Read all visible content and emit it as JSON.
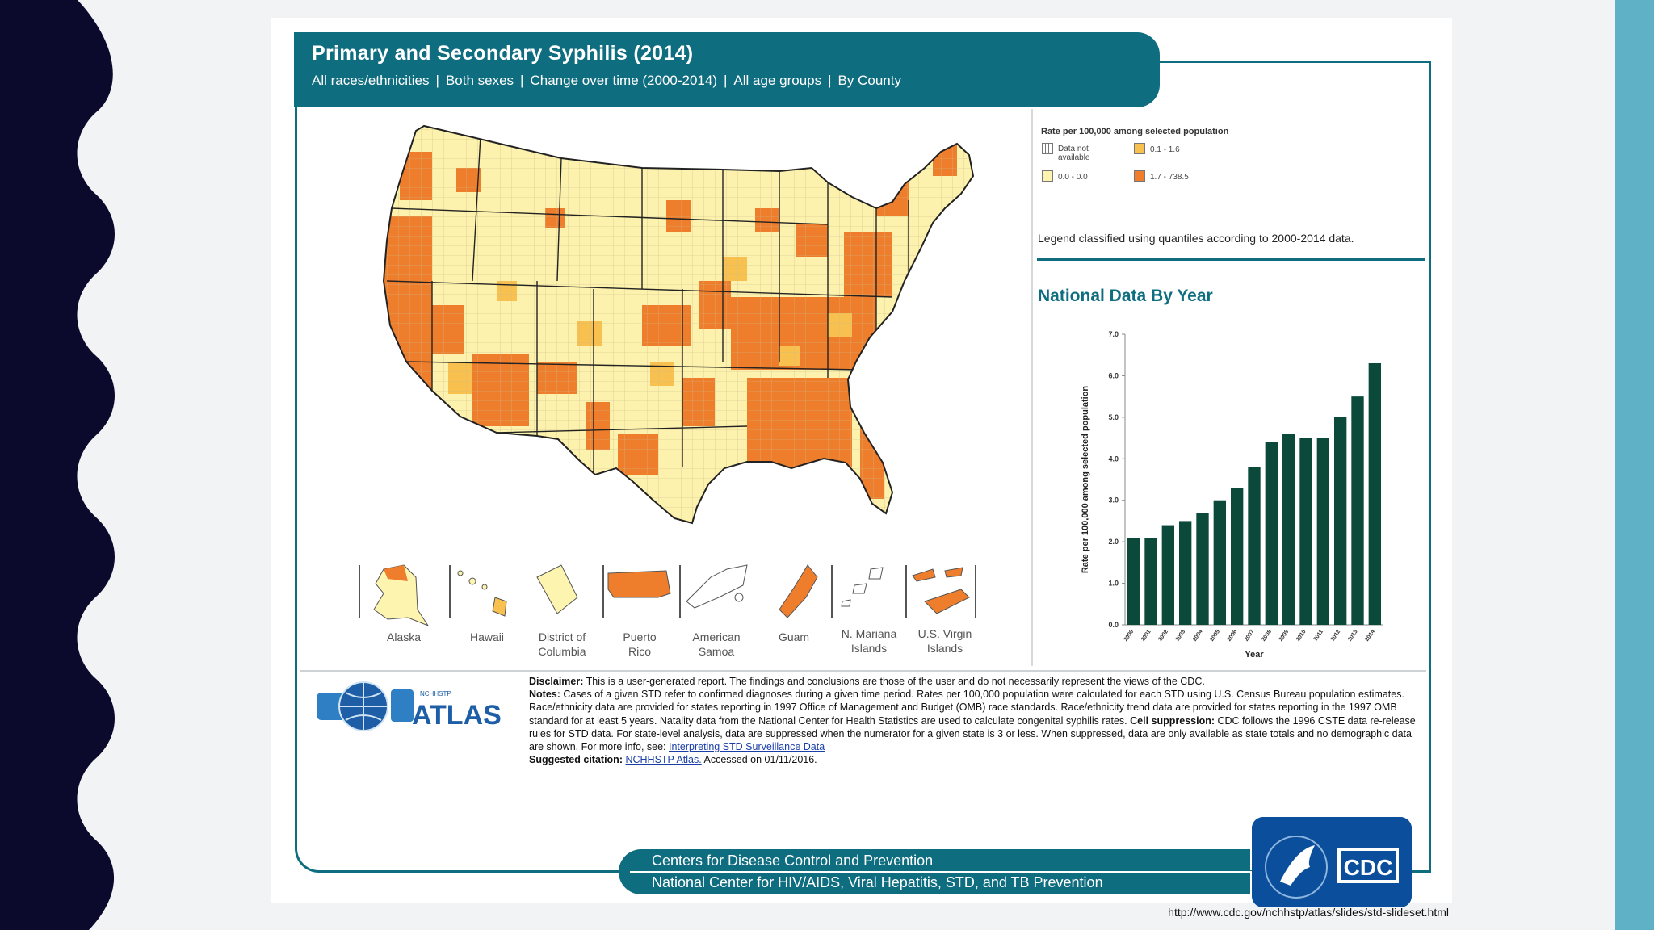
{
  "header": {
    "title": "Primary and Secondary Syphilis (2014)",
    "filters": [
      "All races/ethnicities",
      "Both sexes",
      "Change over time (2000-2014)",
      "All age groups",
      "By County"
    ],
    "separator": "|"
  },
  "legend": {
    "title": "Rate per 100,000 among selected population",
    "items": [
      {
        "label": "Data not available",
        "color": "#ffffff"
      },
      {
        "label": "0.1 - 1.6",
        "color": "#f8c14f"
      },
      {
        "label": "0.0 - 0.0",
        "color": "#fdf4b0"
      },
      {
        "label": "1.7 - 738.5",
        "color": "#ef7e2c"
      }
    ],
    "note": "Legend classified using quantiles according to 2000-2014 data."
  },
  "national_title": "National Data By Year",
  "territories": [
    {
      "name": "Alaska",
      "line2": ""
    },
    {
      "name": "Hawaii",
      "line2": ""
    },
    {
      "name": "District of",
      "line2": "Columbia"
    },
    {
      "name": "Puerto",
      "line2": "Rico"
    },
    {
      "name": "American",
      "line2": "Samoa"
    },
    {
      "name": "Guam",
      "line2": ""
    },
    {
      "name": "N. Mariana",
      "line2": "Islands"
    },
    {
      "name": "U.S. Virgin",
      "line2": "Islands"
    }
  ],
  "chart_data": {
    "type": "bar",
    "title": "National Data By Year",
    "xlabel": "Year",
    "ylabel": "Rate per 100,000 among selected population",
    "categories": [
      "2000",
      "2001",
      "2002",
      "2003",
      "2004",
      "2005",
      "2006",
      "2007",
      "2008",
      "2009",
      "2010",
      "2011",
      "2012",
      "2013",
      "2014"
    ],
    "values": [
      2.1,
      2.1,
      2.4,
      2.5,
      2.7,
      3.0,
      3.3,
      3.8,
      4.4,
      4.6,
      4.5,
      4.5,
      5.0,
      5.5,
      6.3
    ],
    "yticks": [
      "0.0",
      "1.0",
      "2.0",
      "3.0",
      "4.0",
      "5.0",
      "6.0",
      "7.0"
    ],
    "ylim": [
      0,
      7
    ],
    "bar_color": "#0b4a3a"
  },
  "notes": {
    "disclaimer_label": "Disclaimer:",
    "disclaimer": " This is a user-generated report. The findings and conclusions are those of the user and do not necessarily represent the views of the CDC.",
    "notes_label": "Notes:",
    "notes_text": " Cases of a given STD refer to confirmed diagnoses during a given time period. Rates per 100,000 population were calculated for each STD using U.S. Census Bureau population estimates. Race/ethnicity data are provided for states reporting in 1997 Office of Management and Budget (OMB) race standards. Race/ethnicity trend data are provided for states reporting in the 1997 OMB standard for at least 5 years. Natality data from the National Center for Health Statistics are used to calculate congenital syphilis rates.",
    "cell_label": " Cell suppression:",
    "cell_text": " CDC follows the 1996 CSTE data re-release rules for STD data. For state-level analysis, data are suppressed when the numerator for a given state is 3 or less. When suppressed, data are only available as state totals and no demographic data are shown. For more info, see: ",
    "cell_link": "Interpreting STD Surveillance Data",
    "citation_label": "Suggested citation:",
    "citation_link": "NCHHSTP Atlas.",
    "citation_text": " Accessed on 01/11/2016."
  },
  "atlas_logo": {
    "small": "NCHHSTP",
    "big": "ATLAS"
  },
  "footer": {
    "line1": "Centers for Disease Control and Prevention",
    "line2": "National Center for HIV/AIDS, Viral Hepatitis, STD, and TB Prevention",
    "cdc_logo": "CDC"
  },
  "source_url": "http://www.cdc.gov/nchhstp/atlas/slides/std-slideset.html",
  "colors": {
    "teal": "#0f6d80",
    "navy": "#0b0a2c",
    "band": "#5fb1c6",
    "orange": "#ef7e2c",
    "gold": "#f8c14f",
    "cream": "#fdf4b0"
  }
}
